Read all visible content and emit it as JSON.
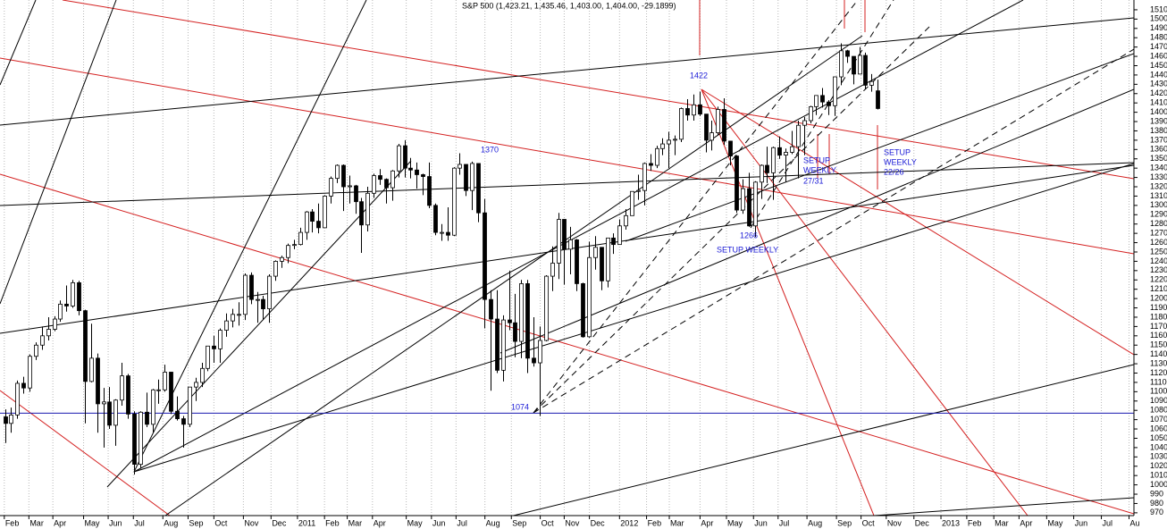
{
  "chart_data": {
    "type": "candlestick",
    "title": "S&P 500 (1,423.21, 1,435.46, 1,403.00, 1,404.00, -29.1899)",
    "open": [
      1073,
      1066,
      1075,
      1109,
      1104,
      1138,
      1150,
      1160,
      1167,
      1178,
      1194,
      1192,
      1217,
      1187,
      1111,
      1136,
      1087,
      1089,
      1064,
      1091,
      1117,
      1076,
      1022,
      1078,
      1065,
      1102,
      1102,
      1121,
      1079,
      1071,
      1065,
      1105,
      1110,
      1125,
      1149,
      1146,
      1166,
      1176,
      1183,
      1183,
      1225,
      1199,
      1199,
      1189,
      1224,
      1240,
      1244,
      1257,
      1258,
      1271,
      1293,
      1283,
      1276,
      1310,
      1329,
      1343,
      1320,
      1321,
      1304,
      1279,
      1313,
      1332,
      1328,
      1319,
      1337,
      1364,
      1340,
      1338,
      1333,
      1331,
      1300,
      1271,
      1271,
      1268,
      1340,
      1344,
      1316,
      1345,
      1292,
      1199,
      1178,
      1123,
      1177,
      1174,
      1154,
      1216,
      1136,
      1131,
      1155,
      1224,
      1238,
      1285,
      1253,
      1263,
      1216,
      1159,
      1244,
      1255,
      1219,
      1265,
      1258,
      1278,
      1289,
      1315,
      1316,
      1345,
      1343,
      1361,
      1366,
      1370,
      1371,
      1404,
      1397,
      1408,
      1398,
      1370,
      1378,
      1403,
      1369,
      1353,
      1295,
      1318,
      1278,
      1325,
      1343,
      1335,
      1362,
      1354,
      1357,
      1363,
      1386,
      1391,
      1406,
      1418,
      1411,
      1407,
      1438,
      1466,
      1460,
      1441,
      1461,
      1429,
      1423
    ],
    "high": [
      1081,
      1083,
      1112,
      1116,
      1140,
      1153,
      1170,
      1180,
      1181,
      1198,
      1214,
      1220,
      1219,
      1188,
      1173,
      1141,
      1104,
      1105,
      1092,
      1131,
      1119,
      1079,
      1079,
      1099,
      1103,
      1113,
      1129,
      1121,
      1095,
      1074,
      1105,
      1115,
      1131,
      1149,
      1160,
      1168,
      1184,
      1189,
      1196,
      1227,
      1228,
      1207,
      1203,
      1226,
      1241,
      1246,
      1259,
      1263,
      1276,
      1294,
      1296,
      1302,
      1311,
      1331,
      1344,
      1344,
      1332,
      1322,
      1308,
      1320,
      1334,
      1339,
      1329,
      1338,
      1366,
      1370,
      1351,
      1346,
      1334,
      1346,
      1302,
      1280,
      1298,
      1341,
      1356,
      1344,
      1347,
      1345,
      1307,
      1209,
      1209,
      1182,
      1230,
      1205,
      1220,
      1220,
      1180,
      1170,
      1225,
      1256,
      1292,
      1285,
      1277,
      1264,
      1217,
      1261,
      1267,
      1255,
      1265,
      1270,
      1285,
      1296,
      1315,
      1333,
      1346,
      1355,
      1364,
      1372,
      1379,
      1375,
      1405,
      1414,
      1419,
      1422,
      1398,
      1391,
      1406,
      1415,
      1369,
      1354,
      1328,
      1335,
      1326,
      1344,
      1363,
      1363,
      1374,
      1361,
      1380,
      1391,
      1395,
      1407,
      1418,
      1426,
      1413,
      1438,
      1474,
      1467,
      1460,
      1470,
      1464,
      1441,
      1435
    ],
    "low": [
      1045,
      1056,
      1071,
      1098,
      1100,
      1134,
      1145,
      1155,
      1165,
      1175,
      1186,
      1190,
      1182,
      1066,
      1110,
      1056,
      1040,
      1060,
      1042,
      1085,
      1071,
      1011,
      1018,
      1062,
      1056,
      1087,
      1100,
      1076,
      1069,
      1040,
      1062,
      1090,
      1105,
      1122,
      1131,
      1131,
      1159,
      1169,
      1171,
      1177,
      1194,
      1174,
      1177,
      1174,
      1219,
      1233,
      1238,
      1253,
      1257,
      1263,
      1271,
      1270,
      1276,
      1302,
      1324,
      1294,
      1302,
      1291,
      1249,
      1272,
      1308,
      1322,
      1302,
      1305,
      1330,
      1330,
      1329,
      1318,
      1311,
      1297,
      1268,
      1262,
      1262,
      1267,
      1333,
      1310,
      1295,
      1282,
      1168,
      1101,
      1120,
      1111,
      1166,
      1137,
      1136,
      1120,
      1127,
      1074,
      1154,
      1208,
      1221,
      1215,
      1226,
      1208,
      1158,
      1158,
      1231,
      1209,
      1212,
      1248,
      1258,
      1274,
      1290,
      1306,
      1300,
      1337,
      1340,
      1354,
      1340,
      1354,
      1368,
      1391,
      1391,
      1396,
      1357,
      1359,
      1375,
      1365,
      1343,
      1292,
      1291,
      1277,
      1266,
      1307,
      1324,
      1306,
      1350,
      1325,
      1355,
      1329,
      1354,
      1388,
      1397,
      1405,
      1397,
      1396,
      1429,
      1453,
      1430,
      1441,
      1425,
      1422,
      1403
    ],
    "close": [
      1066,
      1075,
      1109,
      1104,
      1138,
      1150,
      1160,
      1167,
      1178,
      1194,
      1192,
      1217,
      1187,
      1111,
      1136,
      1087,
      1089,
      1064,
      1091,
      1117,
      1076,
      1022,
      1078,
      1065,
      1102,
      1102,
      1121,
      1079,
      1071,
      1065,
      1105,
      1110,
      1125,
      1149,
      1146,
      1166,
      1176,
      1183,
      1183,
      1225,
      1199,
      1199,
      1189,
      1224,
      1240,
      1244,
      1257,
      1258,
      1271,
      1293,
      1283,
      1276,
      1310,
      1329,
      1343,
      1320,
      1321,
      1304,
      1279,
      1313,
      1332,
      1328,
      1319,
      1337,
      1364,
      1340,
      1338,
      1333,
      1331,
      1300,
      1271,
      1271,
      1268,
      1340,
      1344,
      1316,
      1345,
      1292,
      1199,
      1178,
      1123,
      1177,
      1174,
      1154,
      1216,
      1136,
      1131,
      1155,
      1224,
      1238,
      1285,
      1253,
      1263,
      1216,
      1159,
      1244,
      1255,
      1219,
      1265,
      1258,
      1278,
      1289,
      1315,
      1316,
      1345,
      1343,
      1361,
      1366,
      1370,
      1371,
      1404,
      1397,
      1408,
      1398,
      1370,
      1378,
      1403,
      1369,
      1353,
      1295,
      1318,
      1278,
      1325,
      1343,
      1335,
      1362,
      1354,
      1357,
      1363,
      1386,
      1391,
      1406,
      1418,
      1411,
      1407,
      1438,
      1466,
      1460,
      1441,
      1461,
      1429,
      1433,
      1404
    ],
    "up_color": "#ffffff",
    "down_color": "#000000",
    "xlim": [
      -0.8,
      183.7
    ],
    "xticks": [
      {
        "value": -0.1,
        "label": "Feb"
      },
      {
        "value": 3.9,
        "label": "Mar"
      },
      {
        "value": 7.8,
        "label": "Apr"
      },
      {
        "value": 12.8,
        "label": "May"
      },
      {
        "value": 16.8,
        "label": "Jun"
      },
      {
        "value": 20.9,
        "label": "Jul"
      },
      {
        "value": 25.7,
        "label": "Aug"
      },
      {
        "value": 29.8,
        "label": "Sep"
      },
      {
        "value": 34.0,
        "label": "Oct"
      },
      {
        "value": 38.8,
        "label": "Nov"
      },
      {
        "value": 43.3,
        "label": "Dec"
      },
      {
        "value": 47.6,
        "label": "2011"
      },
      {
        "value": 52.0,
        "label": "Feb"
      },
      {
        "value": 55.7,
        "label": "Mar"
      },
      {
        "value": 59.8,
        "label": "Apr"
      },
      {
        "value": 65.3,
        "label": "May"
      },
      {
        "value": 69.4,
        "label": "Jun"
      },
      {
        "value": 73.4,
        "label": "Jul"
      },
      {
        "value": 78.1,
        "label": "Aug"
      },
      {
        "value": 82.4,
        "label": "Sep"
      },
      {
        "value": 87.1,
        "label": "Oct"
      },
      {
        "value": 91.0,
        "label": "Nov"
      },
      {
        "value": 95.1,
        "label": "Dec"
      },
      {
        "value": 100.0,
        "label": "2012"
      },
      {
        "value": 104.4,
        "label": "Feb"
      },
      {
        "value": 108.1,
        "label": "Mar"
      },
      {
        "value": 113.1,
        "label": "Apr"
      },
      {
        "value": 117.4,
        "label": "May"
      },
      {
        "value": 121.8,
        "label": "Jun"
      },
      {
        "value": 125.8,
        "label": "Jul"
      },
      {
        "value": 130.5,
        "label": "Aug"
      },
      {
        "value": 135.3,
        "label": "Sep"
      },
      {
        "value": 139.3,
        "label": "Oct"
      },
      {
        "value": 143.4,
        "label": "Nov"
      },
      {
        "value": 147.9,
        "label": "Dec"
      },
      {
        "value": 152.3,
        "label": "2013"
      },
      {
        "value": 156.5,
        "label": "Feb"
      },
      {
        "value": 160.9,
        "label": "Mar"
      },
      {
        "value": 165.0,
        "label": "Apr"
      },
      {
        "value": 169.5,
        "label": "May"
      },
      {
        "value": 173.9,
        "label": "Jun"
      },
      {
        "value": 178.4,
        "label": "Jul"
      },
      {
        "value": 182.9,
        "label": "Au"
      }
    ],
    "ylim": [
      967,
      1520.5
    ],
    "yticks": [
      970,
      980,
      990,
      1000,
      1010,
      1020,
      1030,
      1040,
      1050,
      1060,
      1070,
      1080,
      1090,
      1100,
      1110,
      1120,
      1130,
      1140,
      1150,
      1160,
      1170,
      1180,
      1190,
      1200,
      1210,
      1220,
      1230,
      1240,
      1250,
      1260,
      1270,
      1280,
      1290,
      1300,
      1310,
      1320,
      1330,
      1340,
      1350,
      1360,
      1370,
      1380,
      1390,
      1400,
      1410,
      1420,
      1430,
      1440,
      1450,
      1460,
      1470,
      1480,
      1490,
      1500,
      1510
    ],
    "grid": true,
    "horizontal_line": 1077,
    "horizontal_line_color": "#1a1ab0",
    "annotations": [
      "1422",
      "1370",
      "1074",
      "1266",
      "SETUP WEEKLY",
      "SETUP",
      "WEEKLY",
      "27/31",
      "SETUP",
      "WEEKLY",
      "22/26"
    ]
  }
}
